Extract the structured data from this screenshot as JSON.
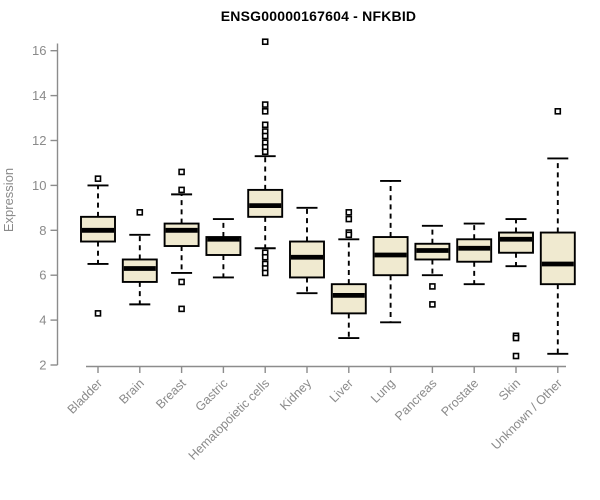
{
  "chart_data": {
    "type": "box",
    "title": "ENSG00000167604 - NFKBID",
    "ylabel": "Expression",
    "xlabel": "",
    "ylim": [
      2,
      16.6
    ],
    "yticks": [
      2,
      4,
      6,
      8,
      10,
      12,
      14,
      16
    ],
    "grid": false,
    "legend": "none",
    "categories": [
      "Bladder",
      "Brain",
      "Breast",
      "Gastric",
      "Hematopoietic cells",
      "Kidney",
      "Liver",
      "Lung",
      "Pancreas",
      "Prostate",
      "Skin",
      "Unknown / Other"
    ],
    "series": [
      {
        "name": "Bladder",
        "whisker_low": 6.5,
        "q1": 7.5,
        "median": 8.0,
        "q3": 8.6,
        "whisker_high": 10.0,
        "outliers": [
          10.3,
          4.3
        ]
      },
      {
        "name": "Brain",
        "whisker_low": 4.7,
        "q1": 5.7,
        "median": 6.3,
        "q3": 6.7,
        "whisker_high": 7.8,
        "outliers": [
          8.8
        ]
      },
      {
        "name": "Breast",
        "whisker_low": 6.1,
        "q1": 7.3,
        "median": 8.0,
        "q3": 8.3,
        "whisker_high": 9.6,
        "outliers": [
          10.6,
          9.8,
          5.7,
          4.5
        ]
      },
      {
        "name": "Gastric",
        "whisker_low": 5.9,
        "q1": 6.9,
        "median": 7.6,
        "q3": 7.7,
        "whisker_high": 8.5,
        "outliers": []
      },
      {
        "name": "Hematopoietic cells",
        "whisker_low": 7.2,
        "q1": 8.6,
        "median": 9.1,
        "q3": 9.8,
        "whisker_high": 11.3,
        "outliers": [
          16.4,
          13.6,
          13.3,
          12.7,
          12.4,
          12.2,
          11.9,
          11.7,
          11.5,
          7.0,
          6.8,
          6.5,
          6.3,
          6.1
        ]
      },
      {
        "name": "Kidney",
        "whisker_low": 5.2,
        "q1": 5.9,
        "median": 6.8,
        "q3": 7.5,
        "whisker_high": 9.0,
        "outliers": []
      },
      {
        "name": "Liver",
        "whisker_low": 3.2,
        "q1": 4.3,
        "median": 5.1,
        "q3": 5.6,
        "whisker_high": 7.6,
        "outliers": [
          8.8,
          8.5,
          7.9,
          7.8
        ]
      },
      {
        "name": "Lung",
        "whisker_low": 3.9,
        "q1": 6.0,
        "median": 6.9,
        "q3": 7.7,
        "whisker_high": 10.2,
        "outliers": []
      },
      {
        "name": "Pancreas",
        "whisker_low": 6.0,
        "q1": 6.7,
        "median": 7.1,
        "q3": 7.4,
        "whisker_high": 8.2,
        "outliers": [
          5.5,
          4.7
        ]
      },
      {
        "name": "Prostate",
        "whisker_low": 5.6,
        "q1": 6.6,
        "median": 7.2,
        "q3": 7.6,
        "whisker_high": 8.3,
        "outliers": []
      },
      {
        "name": "Skin",
        "whisker_low": 6.4,
        "q1": 7.0,
        "median": 7.6,
        "q3": 7.9,
        "whisker_high": 8.5,
        "outliers": [
          3.3,
          3.2,
          2.4
        ]
      },
      {
        "name": "Unknown / Other",
        "whisker_low": 2.5,
        "q1": 5.6,
        "median": 6.5,
        "q3": 7.9,
        "whisker_high": 11.2,
        "outliers": [
          13.3
        ]
      }
    ],
    "colors": {
      "box_fill": "#F0EAD0",
      "box_border": "#000000",
      "median": "#000000",
      "whisker": "#000000",
      "outlier": "#000000",
      "axis": "#8c8c8c",
      "tick_label": "#8a8a8a",
      "title": "#000000",
      "background": "#ffffff"
    }
  }
}
